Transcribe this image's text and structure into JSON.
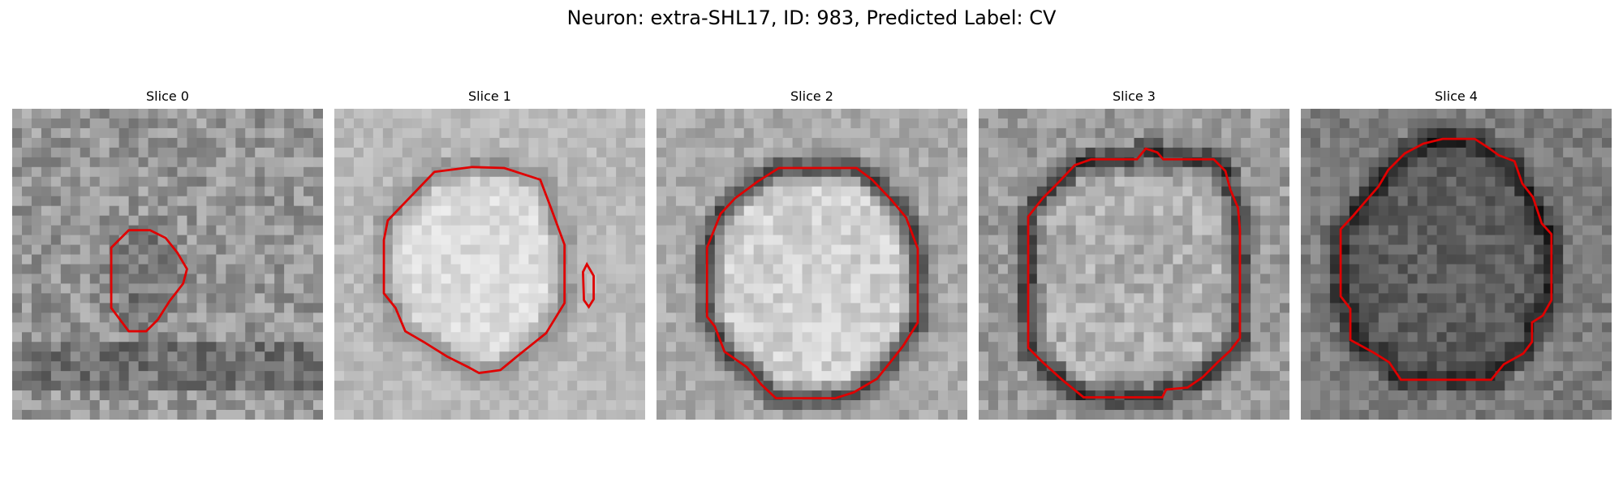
{
  "figure": {
    "title": "Neuron: extra-SHL17, ID: 983, Predicted Label: CV",
    "contour_color": "#e00000"
  },
  "slices": [
    {
      "title": "Slice 0",
      "base_gray": 150,
      "interior_gray": 120,
      "ring_gray": 130,
      "noise": 70,
      "dark_band": true
    },
    {
      "title": "Slice 1",
      "base_gray": 185,
      "interior_gray": 220,
      "ring_gray": 135,
      "noise": 34,
      "dark_band": false
    },
    {
      "title": "Slice 2",
      "base_gray": 170,
      "interior_gray": 210,
      "ring_gray": 55,
      "noise": 44,
      "dark_band": false
    },
    {
      "title": "Slice 3",
      "base_gray": 155,
      "interior_gray": 175,
      "ring_gray": 45,
      "noise": 58,
      "dark_band": false
    },
    {
      "title": "Slice 4",
      "base_gray": 125,
      "interior_gray": 95,
      "ring_gray": 28,
      "noise": 48,
      "dark_band": false
    }
  ]
}
